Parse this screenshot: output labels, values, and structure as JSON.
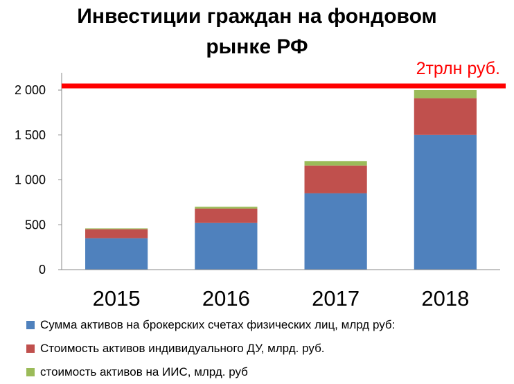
{
  "title_lines": [
    "Инвестиции граждан на фондовом",
    "рынке РФ"
  ],
  "chart_data": {
    "type": "bar",
    "stacked": true,
    "categories": [
      "2015",
      "2016",
      "2017",
      "2018"
    ],
    "series": [
      {
        "name": "Сумма активов на брокерских счетах физических лиц, млрд руб:",
        "color": "#4f81bd",
        "values": [
          350,
          520,
          850,
          1500
        ]
      },
      {
        "name": "Стоимость активов индивидуального ДУ,  млрд. руб.",
        "color": "#c0504d",
        "values": [
          100,
          160,
          310,
          410
        ]
      },
      {
        "name": "стоимость активов на ИИС, млрд. руб",
        "color": "#9bbb59",
        "values": [
          10,
          20,
          50,
          90
        ]
      }
    ],
    "y_ticks": [
      "0",
      "500",
      "1 000",
      "1 500",
      "2 000"
    ],
    "ylim": [
      0,
      2000
    ],
    "xlabel": "",
    "ylabel": "",
    "reference_line": {
      "value": 2000,
      "label": "2трлн руб.",
      "color": "#ff0000"
    },
    "grid": false,
    "legend_position": "bottom"
  }
}
